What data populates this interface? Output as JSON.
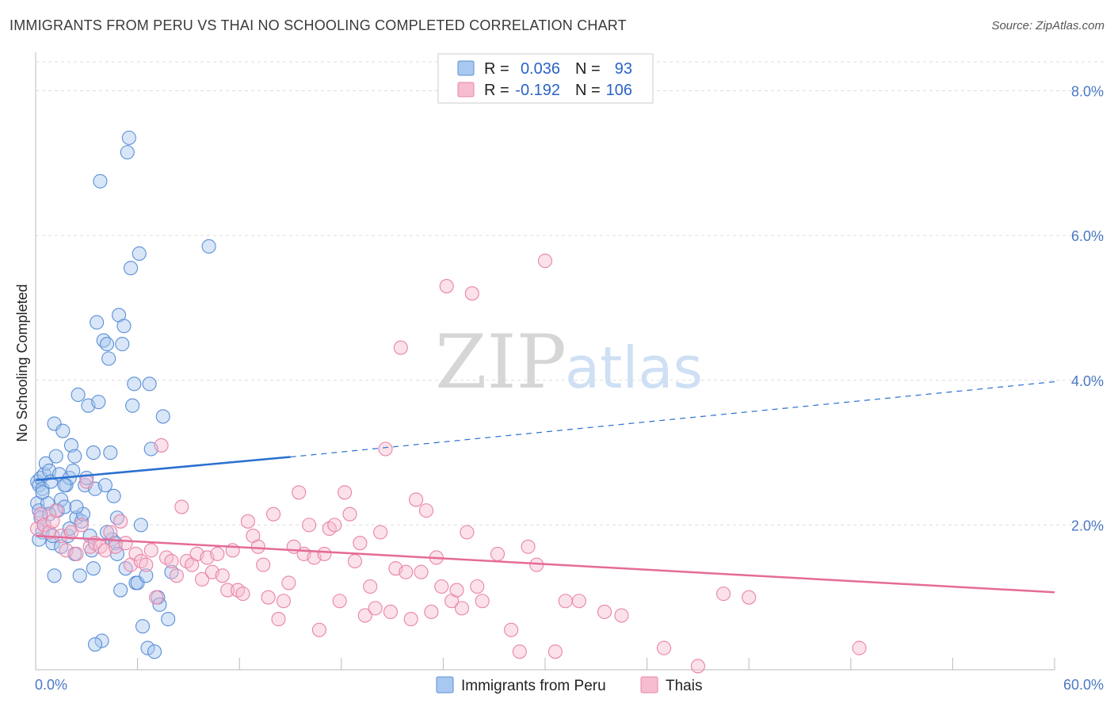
{
  "header": {
    "title": "IMMIGRANTS FROM PERU VS THAI NO SCHOOLING COMPLETED CORRELATION CHART",
    "source": "Source: ZipAtlas.com"
  },
  "watermark": {
    "zip": "ZIP",
    "atlas": "atlas"
  },
  "colors": {
    "peru_fill": "#a9c8f0",
    "peru_stroke": "#5b8fd6",
    "peru_line": "#2a6fd0",
    "thai_fill": "#f6bdd0",
    "thai_stroke": "#e884a8",
    "thai_line": "#e56b98",
    "grid": "#dddddd",
    "axis_label": "#4a78c4"
  },
  "chart_data": {
    "type": "scatter",
    "title": "IMMIGRANTS FROM PERU VS THAI NO SCHOOLING COMPLETED CORRELATION CHART",
    "xlabel": "",
    "ylabel": "No Schooling Completed",
    "xlim": [
      0,
      60
    ],
    "ylim": [
      0,
      8.4
    ],
    "x_tick_labels": [
      "0.0%",
      "60.0%"
    ],
    "y_ticks": [
      2,
      4,
      6,
      8
    ],
    "y_tick_labels": [
      "2.0%",
      "4.0%",
      "6.0%",
      "8.0%"
    ],
    "grid": true,
    "legend": {
      "placement": "top-center",
      "entries": [
        {
          "r_label": "R =",
          "r_value": "0.036",
          "n_label": "N =",
          "n_value": "93"
        },
        {
          "r_label": "R =",
          "r_value": "-0.192",
          "n_label": "N =",
          "n_value": "106"
        }
      ]
    },
    "series": [
      {
        "name": "Immigrants from Peru",
        "trend": {
          "x": [
            0,
            15,
            60
          ],
          "y": [
            2.62,
            2.94,
            3.98
          ],
          "solid_until": 15
        },
        "points": [
          [
            0.1,
            2.6
          ],
          [
            0.1,
            2.3
          ],
          [
            0.2,
            2.55
          ],
          [
            0.2,
            2.2
          ],
          [
            0.3,
            2.65
          ],
          [
            0.3,
            2.1
          ],
          [
            0.4,
            2.5
          ],
          [
            0.4,
            1.9
          ],
          [
            0.5,
            2.7
          ],
          [
            0.5,
            2.0
          ],
          [
            0.6,
            2.85
          ],
          [
            0.7,
            2.3
          ],
          [
            0.8,
            2.75
          ],
          [
            0.9,
            2.6
          ],
          [
            1.0,
            1.75
          ],
          [
            1.0,
            1.85
          ],
          [
            1.1,
            3.4
          ],
          [
            1.2,
            2.95
          ],
          [
            1.3,
            2.2
          ],
          [
            1.4,
            2.7
          ],
          [
            1.5,
            2.35
          ],
          [
            1.6,
            3.3
          ],
          [
            1.7,
            2.25
          ],
          [
            1.8,
            2.55
          ],
          [
            1.9,
            1.85
          ],
          [
            2.0,
            2.65
          ],
          [
            2.1,
            3.1
          ],
          [
            2.2,
            2.75
          ],
          [
            2.3,
            2.95
          ],
          [
            2.4,
            2.1
          ],
          [
            2.5,
            3.8
          ],
          [
            2.6,
            1.3
          ],
          [
            2.7,
            2.05
          ],
          [
            2.8,
            2.15
          ],
          [
            2.9,
            2.55
          ],
          [
            3.0,
            2.65
          ],
          [
            3.1,
            3.65
          ],
          [
            3.2,
            1.85
          ],
          [
            3.3,
            1.65
          ],
          [
            3.4,
            3.0
          ],
          [
            3.5,
            2.5
          ],
          [
            3.6,
            4.8
          ],
          [
            3.7,
            3.7
          ],
          [
            3.8,
            6.75
          ],
          [
            3.9,
            0.4
          ],
          [
            4.0,
            4.55
          ],
          [
            4.1,
            2.55
          ],
          [
            4.2,
            4.5
          ],
          [
            4.3,
            4.3
          ],
          [
            4.4,
            3.0
          ],
          [
            4.5,
            1.8
          ],
          [
            4.6,
            2.4
          ],
          [
            4.7,
            1.75
          ],
          [
            4.8,
            2.1
          ],
          [
            4.9,
            4.9
          ],
          [
            5.0,
            1.1
          ],
          [
            5.1,
            4.5
          ],
          [
            5.2,
            4.75
          ],
          [
            5.4,
            7.15
          ],
          [
            5.5,
            7.35
          ],
          [
            5.6,
            5.55
          ],
          [
            5.7,
            3.65
          ],
          [
            5.8,
            3.95
          ],
          [
            5.9,
            1.2
          ],
          [
            6.0,
            1.2
          ],
          [
            6.1,
            5.75
          ],
          [
            6.2,
            2.0
          ],
          [
            6.3,
            0.6
          ],
          [
            6.5,
            1.3
          ],
          [
            6.6,
            0.3
          ],
          [
            6.7,
            3.95
          ],
          [
            6.8,
            3.05
          ],
          [
            7.0,
            0.25
          ],
          [
            7.2,
            1.0
          ],
          [
            7.3,
            0.9
          ],
          [
            7.5,
            3.5
          ],
          [
            7.8,
            0.7
          ],
          [
            8.0,
            1.35
          ],
          [
            10.2,
            5.85
          ],
          [
            3.4,
            1.4
          ],
          [
            1.1,
            1.3
          ],
          [
            1.5,
            1.7
          ],
          [
            2.3,
            1.6
          ],
          [
            4.8,
            1.6
          ],
          [
            5.3,
            1.4
          ],
          [
            3.5,
            0.35
          ],
          [
            0.2,
            1.8
          ],
          [
            2.4,
            2.25
          ],
          [
            1.7,
            2.55
          ],
          [
            0.8,
            2.15
          ],
          [
            4.2,
            1.9
          ],
          [
            2.0,
            1.95
          ],
          [
            0.4,
            2.45
          ]
        ]
      },
      {
        "name": "Thais",
        "trend": {
          "x": [
            0,
            60
          ],
          "y": [
            1.85,
            1.07
          ]
        },
        "points": [
          [
            0.1,
            1.95
          ],
          [
            0.3,
            2.15
          ],
          [
            0.5,
            2.0
          ],
          [
            0.8,
            1.9
          ],
          [
            1.0,
            2.05
          ],
          [
            1.2,
            2.2
          ],
          [
            1.5,
            1.85
          ],
          [
            1.8,
            1.65
          ],
          [
            2.1,
            1.9
          ],
          [
            2.4,
            1.6
          ],
          [
            2.7,
            2.0
          ],
          [
            3.0,
            2.6
          ],
          [
            3.2,
            1.7
          ],
          [
            3.5,
            1.75
          ],
          [
            3.8,
            1.7
          ],
          [
            4.1,
            1.65
          ],
          [
            4.4,
            1.9
          ],
          [
            4.7,
            1.7
          ],
          [
            5.0,
            2.05
          ],
          [
            5.3,
            1.75
          ],
          [
            5.6,
            1.45
          ],
          [
            5.9,
            1.6
          ],
          [
            6.2,
            1.5
          ],
          [
            6.5,
            1.45
          ],
          [
            6.8,
            1.65
          ],
          [
            7.1,
            1.0
          ],
          [
            7.4,
            3.1
          ],
          [
            7.7,
            1.55
          ],
          [
            8.0,
            1.5
          ],
          [
            8.3,
            1.3
          ],
          [
            8.6,
            2.25
          ],
          [
            8.9,
            1.5
          ],
          [
            9.2,
            1.45
          ],
          [
            9.5,
            1.6
          ],
          [
            9.8,
            1.25
          ],
          [
            10.1,
            1.55
          ],
          [
            10.4,
            1.35
          ],
          [
            10.7,
            1.6
          ],
          [
            11.0,
            1.3
          ],
          [
            11.3,
            1.1
          ],
          [
            11.6,
            1.65
          ],
          [
            11.9,
            1.1
          ],
          [
            12.2,
            1.05
          ],
          [
            12.5,
            2.05
          ],
          [
            12.8,
            1.85
          ],
          [
            13.1,
            1.7
          ],
          [
            13.4,
            1.45
          ],
          [
            13.7,
            1.0
          ],
          [
            14.0,
            2.15
          ],
          [
            14.3,
            0.7
          ],
          [
            14.6,
            0.95
          ],
          [
            14.9,
            1.2
          ],
          [
            15.2,
            1.7
          ],
          [
            15.5,
            2.45
          ],
          [
            15.8,
            1.6
          ],
          [
            16.1,
            2.0
          ],
          [
            16.4,
            1.55
          ],
          [
            16.7,
            0.55
          ],
          [
            17.0,
            1.6
          ],
          [
            17.3,
            1.95
          ],
          [
            17.6,
            2.0
          ],
          [
            17.9,
            0.95
          ],
          [
            18.2,
            2.45
          ],
          [
            18.5,
            2.15
          ],
          [
            18.8,
            1.5
          ],
          [
            19.1,
            1.75
          ],
          [
            19.4,
            0.75
          ],
          [
            19.7,
            1.15
          ],
          [
            20.0,
            0.85
          ],
          [
            20.3,
            1.9
          ],
          [
            20.6,
            3.05
          ],
          [
            20.9,
            0.8
          ],
          [
            21.2,
            1.4
          ],
          [
            21.5,
            4.45
          ],
          [
            21.8,
            1.35
          ],
          [
            22.1,
            0.7
          ],
          [
            22.4,
            2.35
          ],
          [
            22.7,
            1.35
          ],
          [
            23.0,
            2.2
          ],
          [
            23.3,
            0.8
          ],
          [
            23.6,
            1.55
          ],
          [
            23.9,
            1.15
          ],
          [
            24.2,
            5.3
          ],
          [
            24.5,
            0.95
          ],
          [
            24.8,
            1.1
          ],
          [
            25.1,
            0.85
          ],
          [
            25.4,
            1.9
          ],
          [
            25.7,
            5.2
          ],
          [
            26.0,
            1.15
          ],
          [
            26.3,
            0.95
          ],
          [
            27.2,
            1.6
          ],
          [
            28.0,
            0.55
          ],
          [
            28.5,
            0.25
          ],
          [
            29.0,
            1.7
          ],
          [
            29.5,
            1.45
          ],
          [
            30.0,
            5.65
          ],
          [
            30.6,
            0.25
          ],
          [
            31.2,
            0.95
          ],
          [
            32.0,
            0.95
          ],
          [
            33.5,
            0.8
          ],
          [
            34.5,
            0.75
          ],
          [
            37.0,
            0.3
          ],
          [
            39.0,
            0.05
          ],
          [
            40.5,
            1.05
          ],
          [
            42.0,
            1.0
          ],
          [
            48.5,
            0.3
          ]
        ]
      }
    ]
  }
}
